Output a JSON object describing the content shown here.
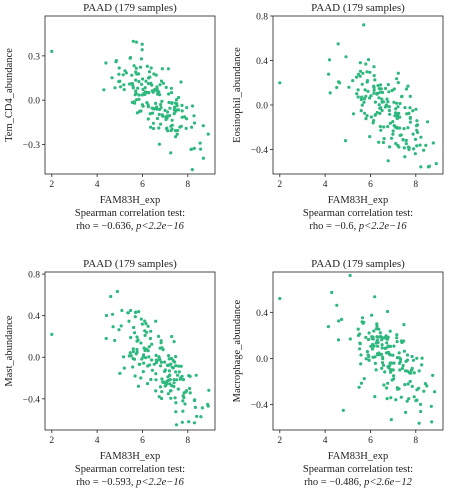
{
  "chart_data": [
    {
      "type": "scatter",
      "title": "PAAD (179 samples)",
      "xlabel": "FAM83H_exp",
      "ylabel": "Tem_CD4_abundance",
      "xlim": [
        1.7,
        9.2
      ],
      "ylim": [
        -0.5,
        0.57
      ],
      "xticks": [
        2,
        4,
        6,
        8
      ],
      "yticks": [
        -0.3,
        0.0,
        0.3
      ],
      "ytick_labels": [
        "−0.3",
        "0.0",
        "0.3"
      ],
      "xtick_labels": [
        "2",
        "4",
        "6",
        "8"
      ],
      "stat_title": "Spearman correlation test:",
      "stat_rho": "rho = −0.636, ",
      "stat_p": "p<2.2e−16",
      "color": "#2db87d",
      "n_points": 179,
      "rho": -0.636,
      "seed": 11,
      "cloud": {
        "x_mean": 6.6,
        "x_sd": 1.05,
        "y_intercept": 0.89,
        "y_slope": -0.135,
        "noise_sd": 0.12
      },
      "anchor_points": [
        [
          2.0,
          0.33
        ],
        [
          4.3,
          0.07
        ],
        [
          8.2,
          -0.47
        ],
        [
          8.9,
          -0.23
        ]
      ]
    },
    {
      "type": "scatter",
      "title": "PAAD (179 samples)",
      "xlabel": "FAM83H_exp",
      "ylabel": "Eosinophil_abundance",
      "xlim": [
        1.7,
        9.2
      ],
      "ylim": [
        -0.62,
        0.8
      ],
      "xticks": [
        2,
        4,
        6,
        8
      ],
      "yticks": [
        -0.4,
        0.0,
        0.4,
        0.8
      ],
      "ytick_labels": [
        "−0.4",
        "0.0",
        "0.4",
        "0.8"
      ],
      "xtick_labels": [
        "2",
        "4",
        "6",
        "8"
      ],
      "stat_title": "Spearman correlation test:",
      "stat_rho": "rho = −0.6, ",
      "stat_p": "p<2.2e−16",
      "color": "#2db87d",
      "n_points": 179,
      "rho": -0.6,
      "seed": 23,
      "cloud": {
        "x_mean": 6.7,
        "x_sd": 1.0,
        "y_intercept": 1.08,
        "y_slope": -0.17,
        "noise_sd": 0.17
      },
      "anchor_points": [
        [
          2.0,
          0.2
        ],
        [
          4.9,
          -0.32
        ],
        [
          5.7,
          0.72
        ],
        [
          8.6,
          -0.55
        ]
      ]
    },
    {
      "type": "scatter",
      "title": "PAAD (179 samples)",
      "xlabel": "FAM83H_exp",
      "ylabel": "Mast_abundance",
      "xlim": [
        1.7,
        9.2
      ],
      "ylim": [
        -0.7,
        0.82
      ],
      "xticks": [
        2,
        4,
        6,
        8
      ],
      "yticks": [
        -0.4,
        0.0,
        0.4,
        0.8
      ],
      "ytick_labels": [
        "−0.4",
        "0.0",
        "0.4",
        "0.8"
      ],
      "xtick_labels": [
        "2",
        "4",
        "6",
        "8"
      ],
      "stat_title": "Spearman correlation test:",
      "stat_rho": "rho = −0.593, ",
      "stat_p": "p<2.2e−16",
      "color": "#2db87d",
      "n_points": 179,
      "rho": -0.593,
      "seed": 37,
      "cloud": {
        "x_mean": 6.8,
        "x_sd": 1.0,
        "y_intercept": 1.25,
        "y_slope": -0.2,
        "noise_sd": 0.17
      },
      "anchor_points": [
        [
          2.0,
          0.22
        ],
        [
          4.4,
          0.18
        ],
        [
          7.5,
          -0.65
        ],
        [
          8.9,
          -0.47
        ]
      ]
    },
    {
      "type": "scatter",
      "title": "PAAD (179 samples)",
      "xlabel": "FAM83H_exp",
      "ylabel": "Macrophage_abundance",
      "xlim": [
        1.7,
        9.2
      ],
      "ylim": [
        -0.62,
        0.75
      ],
      "xticks": [
        2,
        4,
        6,
        8
      ],
      "yticks": [
        -0.4,
        0.0,
        0.4
      ],
      "ytick_labels": [
        "−0.4",
        "0.0",
        "0.4"
      ],
      "xtick_labels": [
        "2",
        "4",
        "6",
        "8"
      ],
      "stat_title": "Spearman correlation test:",
      "stat_rho": "rho = −0.486, ",
      "stat_p": "p<2.6e−12",
      "color": "#2db87d",
      "n_points": 179,
      "rho": -0.486,
      "seed": 53,
      "cloud": {
        "x_mean": 6.8,
        "x_sd": 1.0,
        "y_intercept": 0.95,
        "y_slope": -0.14,
        "noise_sd": 0.18
      },
      "anchor_points": [
        [
          2.0,
          0.52
        ],
        [
          5.1,
          0.72
        ],
        [
          4.8,
          -0.45
        ],
        [
          8.7,
          -0.55
        ]
      ]
    }
  ]
}
